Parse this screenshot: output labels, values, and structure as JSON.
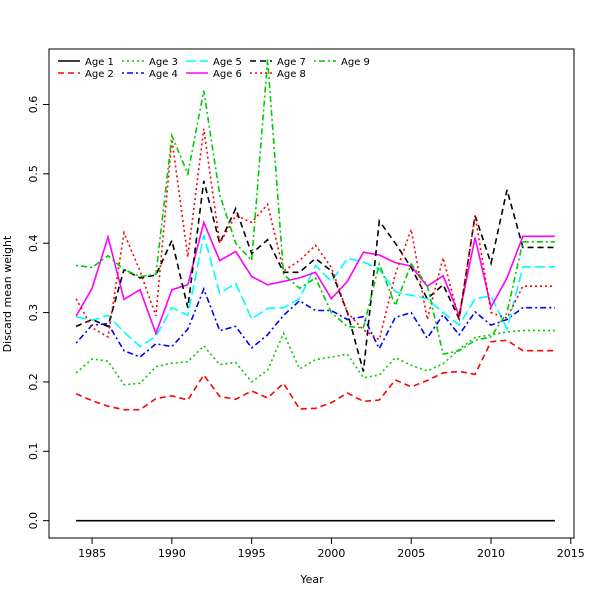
{
  "chart_data": {
    "type": "line",
    "title": "",
    "xlabel": "Year",
    "ylabel": "Discard mean weight",
    "xlim": [
      1982.3,
      2015.2
    ],
    "ylim": [
      -0.025,
      0.68
    ],
    "xticks": [
      1985,
      1990,
      1995,
      2000,
      2005,
      2010,
      2015
    ],
    "yticks": [
      0.0,
      0.1,
      0.2,
      0.3,
      0.4,
      0.5,
      0.6
    ],
    "grid": false,
    "legend": "top-left",
    "x": [
      1984,
      1985,
      1986,
      1987,
      1988,
      1989,
      1990,
      1991,
      1992,
      1993,
      1994,
      1995,
      1996,
      1997,
      1998,
      1999,
      2000,
      2001,
      2002,
      2003,
      2004,
      2005,
      2006,
      2007,
      2008,
      2009,
      2010,
      2011,
      2012,
      2013,
      2014
    ],
    "series": [
      {
        "name": "Age 1",
        "color": "#000000",
        "dash": "solid",
        "values": [
          0,
          0,
          0,
          0,
          0,
          0,
          0,
          0,
          0,
          0,
          0,
          0,
          0,
          0,
          0,
          0,
          0,
          0,
          0,
          0,
          0,
          0,
          0,
          0,
          0,
          0,
          0,
          0,
          0,
          0,
          0
        ]
      },
      {
        "name": "Age 2",
        "color": "#ff0000",
        "dash": "dashed",
        "values": [
          0.183,
          0.173,
          0.165,
          0.16,
          0.16,
          0.176,
          0.18,
          0.174,
          0.21,
          0.179,
          0.175,
          0.187,
          0.177,
          0.198,
          0.161,
          0.162,
          0.17,
          0.184,
          0.172,
          0.174,
          0.203,
          0.193,
          0.202,
          0.213,
          0.215,
          0.211,
          0.258,
          0.26,
          0.245,
          0.245,
          0.245
        ]
      },
      {
        "name": "Age 3",
        "color": "#00cc00",
        "dash": "dotted",
        "values": [
          0.213,
          0.233,
          0.23,
          0.196,
          0.198,
          0.222,
          0.227,
          0.229,
          0.252,
          0.225,
          0.228,
          0.2,
          0.217,
          0.27,
          0.219,
          0.232,
          0.236,
          0.24,
          0.206,
          0.21,
          0.235,
          0.224,
          0.216,
          0.226,
          0.247,
          0.264,
          0.268,
          0.272,
          0.274,
          0.274,
          0.274
        ]
      },
      {
        "name": "Age 4",
        "color": "#0000ff",
        "dash": "dashdot",
        "values": [
          0.256,
          0.282,
          0.284,
          0.245,
          0.236,
          0.255,
          0.251,
          0.276,
          0.334,
          0.274,
          0.28,
          0.249,
          0.268,
          0.296,
          0.317,
          0.303,
          0.303,
          0.29,
          0.294,
          0.248,
          0.293,
          0.3,
          0.263,
          0.297,
          0.268,
          0.301,
          0.282,
          0.29,
          0.307,
          0.307,
          0.307
        ]
      },
      {
        "name": "Age 5",
        "color": "#00ffff",
        "dash": "longdash",
        "values": [
          0.294,
          0.289,
          0.296,
          0.272,
          0.251,
          0.266,
          0.307,
          0.296,
          0.412,
          0.328,
          0.342,
          0.291,
          0.306,
          0.307,
          0.32,
          0.368,
          0.345,
          0.378,
          0.373,
          0.363,
          0.33,
          0.325,
          0.32,
          0.3,
          0.282,
          0.32,
          0.324,
          0.276,
          0.366,
          0.366,
          0.366
        ]
      },
      {
        "name": "Age 6",
        "color": "#ff00ff",
        "dash": "solid",
        "values": [
          0.295,
          0.335,
          0.409,
          0.319,
          0.333,
          0.27,
          0.333,
          0.34,
          0.43,
          0.375,
          0.388,
          0.352,
          0.34,
          0.345,
          0.35,
          0.358,
          0.32,
          0.345,
          0.387,
          0.383,
          0.372,
          0.367,
          0.338,
          0.353,
          0.296,
          0.408,
          0.308,
          0.35,
          0.41,
          0.41,
          0.41
        ]
      },
      {
        "name": "Age 7",
        "color": "#000000",
        "dash": "dashed",
        "values": [
          0.28,
          0.29,
          0.28,
          0.362,
          0.35,
          0.354,
          0.404,
          0.307,
          0.49,
          0.4,
          0.45,
          0.385,
          0.405,
          0.358,
          0.358,
          0.378,
          0.36,
          0.3,
          0.215,
          0.432,
          0.4,
          0.365,
          0.32,
          0.34,
          0.291,
          0.44,
          0.371,
          0.477,
          0.394,
          0.394,
          0.394
        ]
      },
      {
        "name": "Age 8",
        "color": "#ff0000",
        "dash": "dotted",
        "values": [
          0.32,
          0.278,
          0.265,
          0.415,
          0.36,
          0.295,
          0.55,
          0.38,
          0.565,
          0.4,
          0.44,
          0.43,
          0.456,
          0.36,
          0.375,
          0.397,
          0.365,
          0.3,
          0.275,
          0.261,
          0.355,
          0.42,
          0.29,
          0.379,
          0.29,
          0.44,
          0.3,
          0.292,
          0.338,
          0.338,
          0.338
        ]
      },
      {
        "name": "Age 9",
        "color": "#00cc00",
        "dash": "dashdot",
        "values": [
          0.368,
          0.365,
          0.382,
          0.362,
          0.352,
          0.355,
          0.555,
          0.5,
          0.62,
          0.47,
          0.4,
          0.375,
          0.665,
          0.355,
          0.335,
          0.35,
          0.3,
          0.28,
          0.278,
          0.37,
          0.31,
          0.37,
          0.34,
          0.24,
          0.245,
          0.26,
          0.265,
          0.3,
          0.402,
          0.402,
          0.402
        ]
      }
    ]
  }
}
